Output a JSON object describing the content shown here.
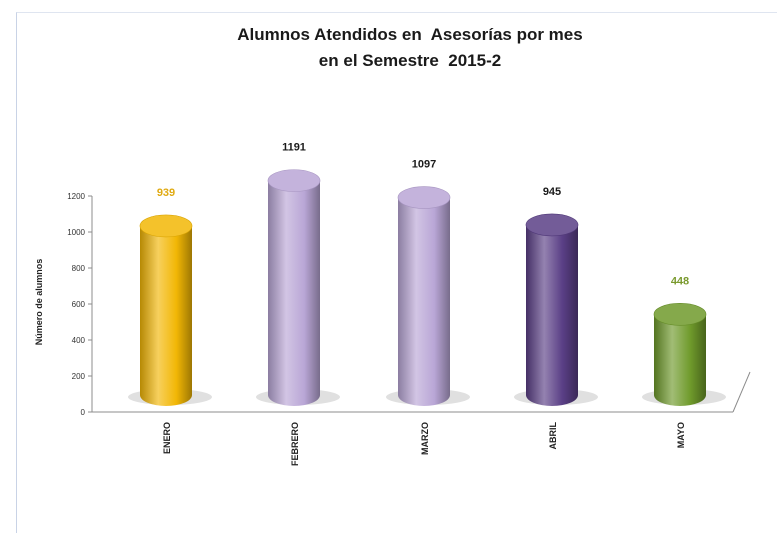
{
  "chart_data": {
    "type": "bar",
    "title": "Alumnos Atendidos en  Asesorías por mes",
    "subtitle": "en el Semestre  2015-2",
    "xlabel": "",
    "ylabel": "Número de alumnos",
    "categories": [
      "ENERO",
      "FEBRERO",
      "MARZO",
      "ABRIL",
      "MAYO"
    ],
    "values": [
      939,
      1191,
      1097,
      945,
      448
    ],
    "data_labels": [
      "939",
      "1191",
      "1097",
      "945",
      "448"
    ],
    "ylim": [
      0,
      1200
    ],
    "yticks": [
      0,
      200,
      400,
      600,
      800,
      1000,
      1200
    ],
    "grid": false,
    "legend": "none",
    "colors": [
      "#f2b705",
      "#b9a6d6",
      "#b9a6d6",
      "#5a3f86",
      "#6f9a2b"
    ],
    "label_colors": [
      "#e0aa12",
      "#1a1a1a",
      "#1a1a1a",
      "#1a1a1a",
      "#7a9a2e"
    ]
  }
}
